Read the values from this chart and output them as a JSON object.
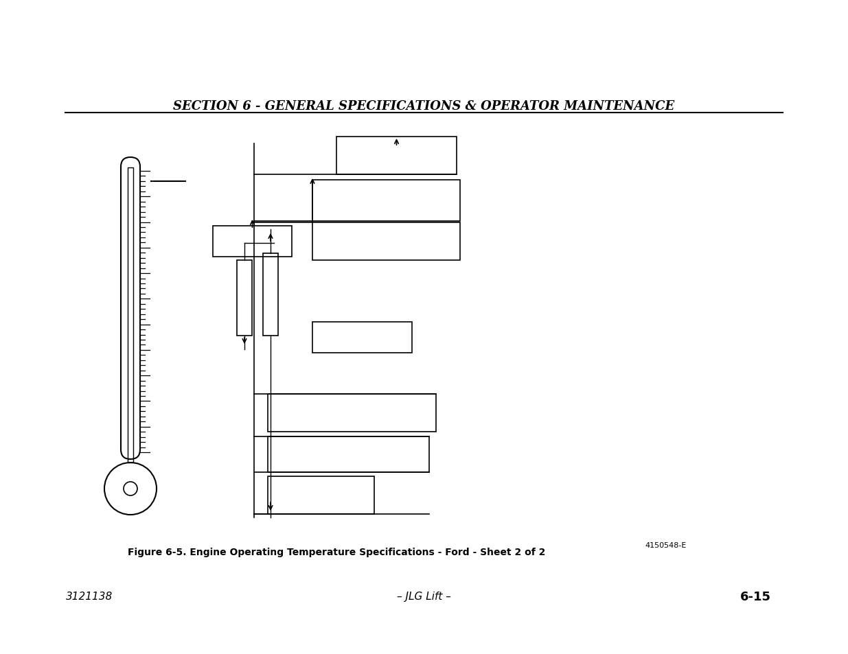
{
  "title": "SECTION 6 - GENERAL SPECIFICATIONS & OPERATOR MAINTENANCE",
  "figure_caption": "Figure 6-5. Engine Operating Temperature Specifications - Ford - Sheet 2 of 2",
  "part_number": "4150548-E",
  "page_left": "3121138",
  "page_center": "– JLG Lift –",
  "page_right": "6-15",
  "bg_color": "#ffffff",
  "line_color": "#000000"
}
